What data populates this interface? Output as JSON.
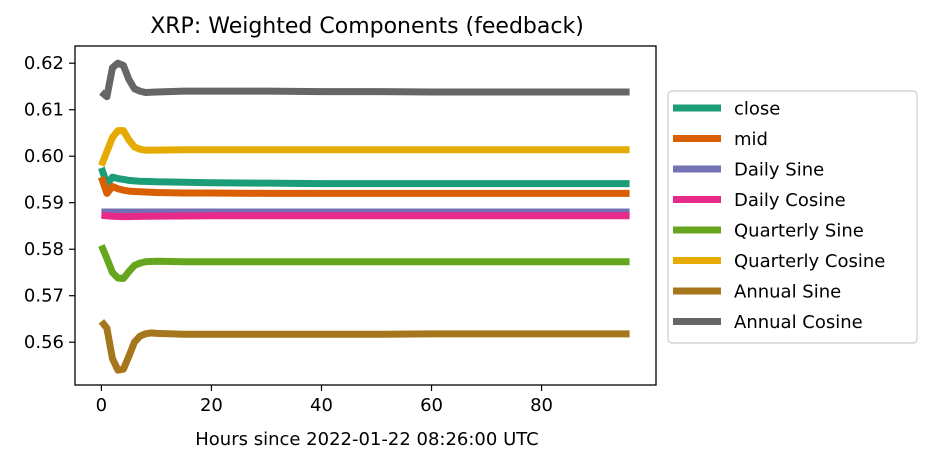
{
  "chart_data": {
    "type": "line",
    "title": "XRP: Weighted Components (feedback)",
    "xlabel": "Hours since 2022-01-22 08:26:00 UTC",
    "ylabel": "",
    "xlim": [
      -4.8,
      100.8
    ],
    "ylim": [
      0.5508,
      0.6237
    ],
    "xticks": [
      0,
      20,
      40,
      60,
      80
    ],
    "yticks": [
      0.56,
      0.57,
      0.58,
      0.59,
      0.6,
      0.61,
      0.62
    ],
    "ytick_labels": [
      "0.56",
      "0.57",
      "0.58",
      "0.59",
      "0.60",
      "0.61",
      "0.62"
    ],
    "grid": false,
    "legend_position": "outside-right",
    "series": [
      {
        "name": "close",
        "color": "#1b9e77",
        "x": [
          0,
          1,
          2,
          3,
          4,
          5,
          6,
          7,
          8,
          10,
          15,
          20,
          30,
          40,
          50,
          60,
          70,
          80,
          90,
          96
        ],
        "y": [
          0.5975,
          0.594,
          0.5955,
          0.5952,
          0.595,
          0.5948,
          0.5947,
          0.5946,
          0.5946,
          0.5945,
          0.5944,
          0.5943,
          0.5942,
          0.5941,
          0.5941,
          0.5941,
          0.5941,
          0.5941,
          0.5941,
          0.5941
        ]
      },
      {
        "name": "mid",
        "color": "#d95f02",
        "x": [
          0,
          1,
          2,
          3,
          4,
          5,
          6,
          8,
          10,
          15,
          20,
          30,
          40,
          50,
          60,
          70,
          80,
          90,
          96
        ],
        "y": [
          0.5955,
          0.592,
          0.5935,
          0.593,
          0.5927,
          0.5925,
          0.5924,
          0.5923,
          0.5922,
          0.5921,
          0.5921,
          0.592,
          0.592,
          0.592,
          0.592,
          0.592,
          0.592,
          0.592,
          0.592
        ]
      },
      {
        "name": "Daily Sine",
        "color": "#7570b3",
        "x": [
          0,
          2,
          4,
          8,
          20,
          40,
          60,
          80,
          96
        ],
        "y": [
          0.588,
          0.588,
          0.588,
          0.588,
          0.588,
          0.588,
          0.588,
          0.588,
          0.588
        ]
      },
      {
        "name": "Daily Cosine",
        "color": "#e7298a",
        "x": [
          0,
          2,
          4,
          8,
          20,
          40,
          60,
          80,
          96
        ],
        "y": [
          0.5873,
          0.5871,
          0.587,
          0.5871,
          0.5872,
          0.5872,
          0.5872,
          0.5872,
          0.5872
        ]
      },
      {
        "name": "Quarterly Sine",
        "color": "#66a61e",
        "x": [
          0,
          1,
          2,
          3,
          4,
          5,
          6,
          7,
          8,
          10,
          15,
          20,
          30,
          40,
          50,
          60,
          70,
          80,
          90,
          96
        ],
        "y": [
          0.5808,
          0.578,
          0.575,
          0.5738,
          0.5737,
          0.5752,
          0.5765,
          0.577,
          0.5773,
          0.5774,
          0.5773,
          0.5773,
          0.5773,
          0.5773,
          0.5773,
          0.5773,
          0.5773,
          0.5773,
          0.5773,
          0.5773
        ]
      },
      {
        "name": "Quarterly Cosine",
        "color": "#e6ab02",
        "x": [
          0,
          1,
          2,
          3,
          4,
          5,
          6,
          7,
          8,
          10,
          15,
          20,
          30,
          40,
          50,
          60,
          70,
          80,
          90,
          96
        ],
        "y": [
          0.598,
          0.601,
          0.604,
          0.6055,
          0.6055,
          0.6035,
          0.602,
          0.6015,
          0.6013,
          0.6013,
          0.6014,
          0.6014,
          0.6014,
          0.6014,
          0.6014,
          0.6014,
          0.6014,
          0.6014,
          0.6014,
          0.6014
        ]
      },
      {
        "name": "Annual Sine",
        "color": "#a6761d",
        "x": [
          0,
          1,
          2,
          3,
          4,
          5,
          6,
          7,
          8,
          9,
          10,
          15,
          20,
          30,
          40,
          50,
          60,
          70,
          80,
          90,
          96
        ],
        "y": [
          0.5645,
          0.563,
          0.5565,
          0.554,
          0.5542,
          0.557,
          0.56,
          0.5613,
          0.5618,
          0.562,
          0.5619,
          0.5617,
          0.5617,
          0.5617,
          0.5617,
          0.5617,
          0.5618,
          0.5618,
          0.5618,
          0.5618,
          0.5618
        ]
      },
      {
        "name": "Annual Cosine",
        "color": "#666666",
        "x": [
          0,
          1,
          2,
          3,
          4,
          5,
          6,
          7,
          8,
          10,
          15,
          20,
          30,
          40,
          50,
          60,
          70,
          80,
          90,
          96
        ],
        "y": [
          0.6138,
          0.6128,
          0.619,
          0.62,
          0.6195,
          0.6165,
          0.6145,
          0.614,
          0.6137,
          0.6138,
          0.614,
          0.614,
          0.614,
          0.6139,
          0.6139,
          0.6138,
          0.6138,
          0.6138,
          0.6138,
          0.6138
        ]
      }
    ]
  }
}
